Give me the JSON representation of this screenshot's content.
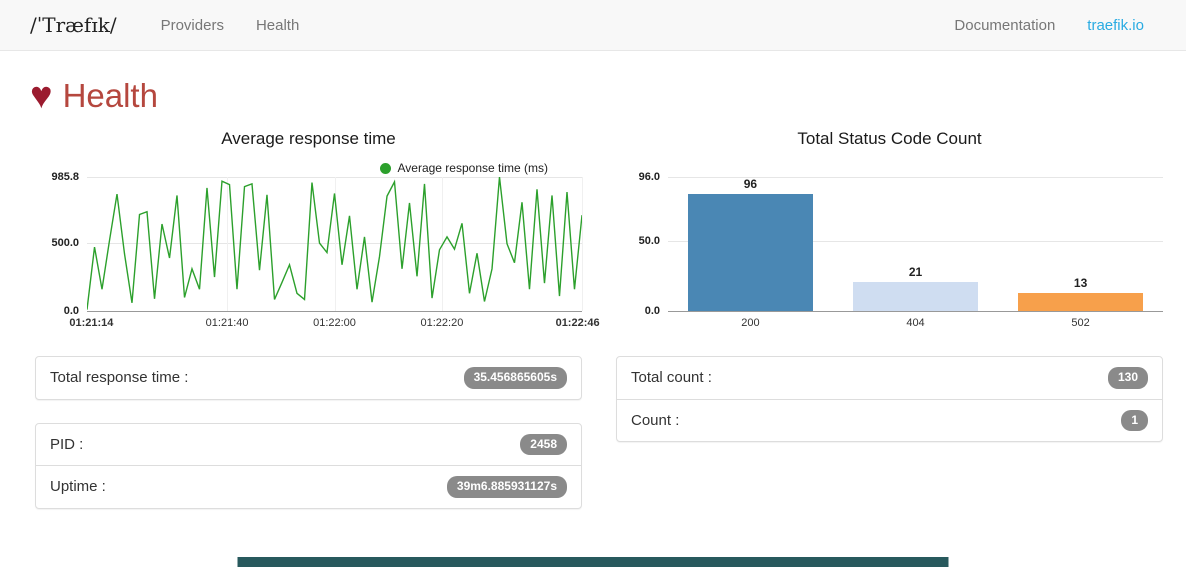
{
  "navbar": {
    "logo": "/ˈTræfɪk/",
    "items": [
      {
        "label": "Providers"
      },
      {
        "label": "Health"
      }
    ],
    "right_items": [
      {
        "label": "Documentation"
      },
      {
        "label": "traefik.io"
      }
    ]
  },
  "page": {
    "heart_icon": "♥",
    "title": "Health"
  },
  "colors": {
    "link_blue": "#29abe2",
    "heart_red": "#9b1b2f",
    "title_red": "#b5473e",
    "badge_gray": "#8a8a8a",
    "footer_teal": "#28595d"
  },
  "chart_data": [
    {
      "type": "line",
      "title": "Average response time",
      "legend": "Average response time (ms)",
      "line_color": "#2ca02c",
      "ylim": [
        0,
        985.8
      ],
      "y_ticks": [
        "985.8",
        "500.0",
        "0.0"
      ],
      "x_ticks": [
        "01:21:14",
        "01:21:40",
        "01:22:00",
        "01:22:20",
        "01:22:46"
      ],
      "series": [
        {
          "name": "Average response time (ms)",
          "values": [
            10,
            470,
            160,
            520,
            860,
            420,
            60,
            710,
            730,
            90,
            640,
            390,
            850,
            100,
            310,
            160,
            905,
            250,
            955,
            930,
            160,
            915,
            935,
            300,
            855,
            85,
            210,
            340,
            130,
            85,
            945,
            500,
            430,
            865,
            340,
            700,
            160,
            545,
            65,
            400,
            845,
            950,
            310,
            795,
            255,
            935,
            95,
            450,
            545,
            455,
            645,
            130,
            425,
            70,
            310,
            985,
            495,
            355,
            800,
            160,
            895,
            205,
            850,
            110,
            875,
            160,
            705
          ]
        }
      ]
    },
    {
      "type": "bar",
      "title": "Total Status Code Count",
      "categories": [
        "200",
        "404",
        "502"
      ],
      "values": [
        96,
        21,
        13
      ],
      "bar_colors": [
        "#4a87b4",
        "#cfddf1",
        "#f7a04b"
      ],
      "ylim": [
        0,
        96
      ],
      "y_ticks": [
        "96.0",
        "50.0",
        "0.0"
      ]
    }
  ],
  "panels": {
    "total_response_time": {
      "label": "Total response time :",
      "value": "35.456865605s"
    },
    "pid": {
      "label": "PID :",
      "value": "2458"
    },
    "uptime": {
      "label": "Uptime :",
      "value": "39m6.885931127s"
    },
    "total_count": {
      "label": "Total count :",
      "value": "130"
    },
    "count": {
      "label": "Count :",
      "value": "1"
    }
  }
}
